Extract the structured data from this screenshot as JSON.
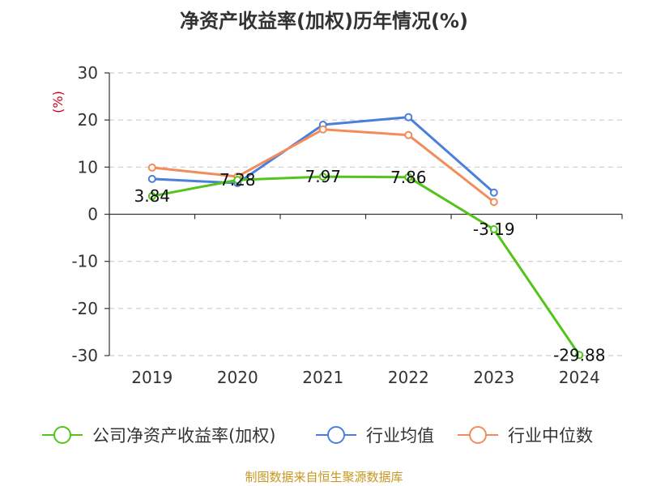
{
  "title": "净资产收益率(加权)历年情况(%)",
  "footer": "制图数据来自恒生聚源数据库",
  "chart_data": {
    "type": "line",
    "title": "净资产收益率(加权)历年情况(%)",
    "ylabel": "(%)",
    "xlabel": "",
    "ylim": [
      -30,
      30
    ],
    "yticks": [
      30,
      20,
      10,
      0,
      -10,
      -20,
      -30
    ],
    "categories": [
      "2019",
      "2020",
      "2021",
      "2022",
      "2023",
      "2024"
    ],
    "series": [
      {
        "name": "公司净资产收益率(加权)",
        "color": "#52c41a",
        "values": [
          3.84,
          7.28,
          7.97,
          7.86,
          -3.19,
          -29.88
        ],
        "labels": [
          "3.84",
          "7.28",
          "7.97",
          "7.86",
          "-3.19",
          "-29.88"
        ]
      },
      {
        "name": "行业均值",
        "color": "#4a7fdc",
        "values": [
          7.5,
          6.6,
          19.0,
          20.6,
          4.6,
          null
        ]
      },
      {
        "name": "行业中位数",
        "color": "#f28c5a",
        "values": [
          9.9,
          8.0,
          18.0,
          16.8,
          2.6,
          null
        ]
      }
    ],
    "grid": true,
    "legend_position": "bottom"
  }
}
